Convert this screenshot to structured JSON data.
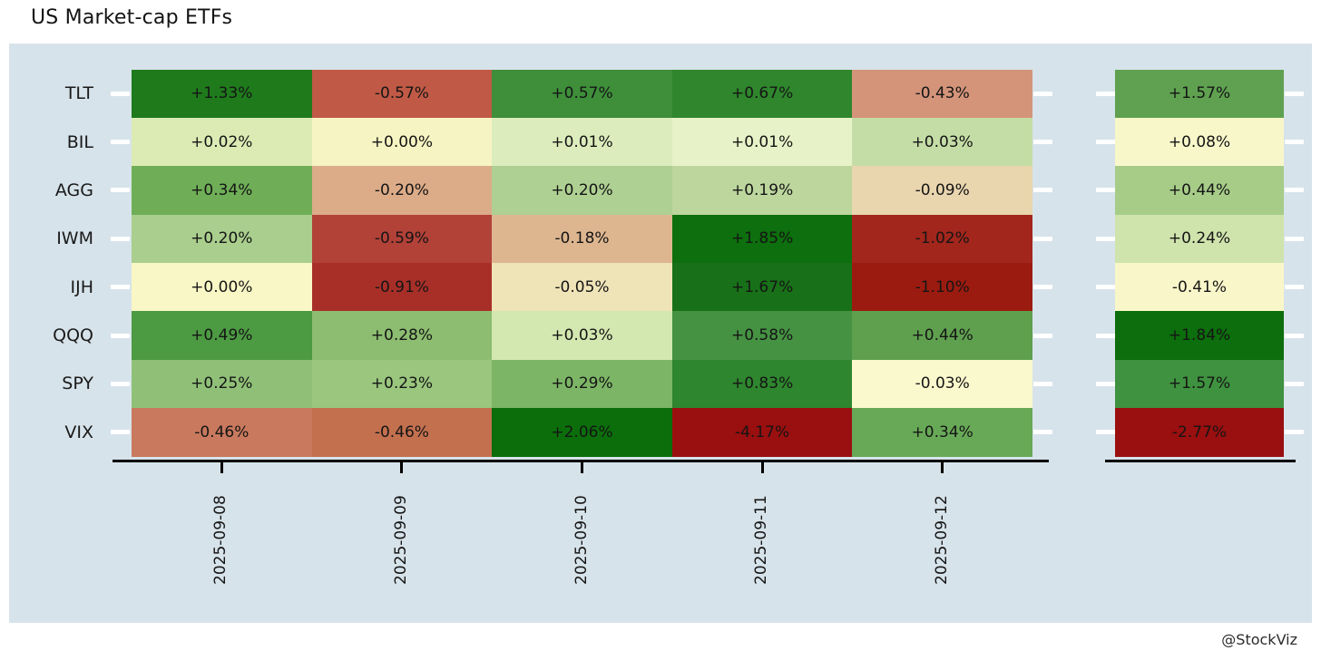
{
  "title": "US Market-cap ETFs",
  "watermark": "@StockViz",
  "colors": {
    "panel_bg": "#d7e3ea",
    "axis_line": "#000000",
    "row_tick": "#ffffff",
    "cell_text": "#151515"
  },
  "chart_data": {
    "type": "heatmap",
    "title": "US Market-cap ETFs",
    "columns": [
      "2025-09-08",
      "2025-09-09",
      "2025-09-10",
      "2025-09-11",
      "2025-09-12"
    ],
    "rows": [
      "TLT",
      "BIL",
      "AGG",
      "IWM",
      "IJH",
      "QQQ",
      "SPY",
      "VIX"
    ],
    "values": [
      [
        1.33,
        -0.57,
        0.57,
        0.67,
        -0.43
      ],
      [
        0.02,
        0.0,
        0.01,
        0.01,
        0.03
      ],
      [
        0.34,
        -0.2,
        0.2,
        0.19,
        -0.09
      ],
      [
        0.2,
        -0.59,
        -0.18,
        1.85,
        -1.02
      ],
      [
        0.0,
        -0.91,
        -0.05,
        1.67,
        -1.1
      ],
      [
        0.49,
        0.28,
        0.03,
        0.58,
        0.44
      ],
      [
        0.25,
        0.23,
        0.29,
        0.83,
        -0.03
      ],
      [
        -0.46,
        -0.46,
        2.06,
        -4.17,
        0.34
      ]
    ],
    "cell_labels": [
      [
        "+1.33%",
        "-0.57%",
        "+0.57%",
        "+0.67%",
        "-0.43%"
      ],
      [
        "+0.02%",
        "+0.00%",
        "+0.01%",
        "+0.01%",
        "+0.03%"
      ],
      [
        "+0.34%",
        "-0.20%",
        "+0.20%",
        "+0.19%",
        "-0.09%"
      ],
      [
        "+0.20%",
        "-0.59%",
        "-0.18%",
        "+1.85%",
        "-1.02%"
      ],
      [
        "+0.00%",
        "-0.91%",
        "-0.05%",
        "+1.67%",
        "-1.10%"
      ],
      [
        "+0.49%",
        "+0.28%",
        "+0.03%",
        "+0.58%",
        "+0.44%"
      ],
      [
        "+0.25%",
        "+0.23%",
        "+0.29%",
        "+0.83%",
        "-0.03%"
      ],
      [
        "-0.46%",
        "-0.46%",
        "+2.06%",
        "-4.17%",
        "+0.34%"
      ]
    ],
    "cell_colors": [
      [
        "#1f7a1c",
        "#c05a46",
        "#3e8e3a",
        "#2f862c",
        "#d3947a"
      ],
      [
        "#dcebb4",
        "#f6f4c2",
        "#dcecbc",
        "#e8f2c8",
        "#c4dda6"
      ],
      [
        "#6fae57",
        "#dcab88",
        "#aed092",
        "#bcd69e",
        "#e9d5ae"
      ],
      [
        "#a9ce8d",
        "#b24138",
        "#ddb68f",
        "#0d6f0d",
        "#a2261c"
      ],
      [
        "#f9f7c6",
        "#a82f28",
        "#efe3b8",
        "#187118",
        "#9c1b10"
      ],
      [
        "#4c9a42",
        "#8cbd70",
        "#d3e7b0",
        "#459243",
        "#5fa04f"
      ],
      [
        "#90c078",
        "#9ac67e",
        "#7cb566",
        "#2e862e",
        "#faf8cd"
      ],
      [
        "#c8795e",
        "#c3704f",
        "#0b6e0b",
        "#9a0f0f",
        "#68a957"
      ]
    ],
    "summary": {
      "values": [
        1.57,
        0.08,
        0.44,
        0.24,
        -0.41,
        1.84,
        1.57,
        -2.77
      ],
      "labels": [
        "+1.57%",
        "+0.08%",
        "+0.44%",
        "+0.24%",
        "-0.41%",
        "+1.84%",
        "+1.57%",
        "-2.77%"
      ],
      "colors": [
        "#5fa150",
        "#f8f7ca",
        "#a6cc88",
        "#cfe3ac",
        "#f9f7ca",
        "#0c6e0c",
        "#3f923f",
        "#9a0f0f"
      ]
    }
  }
}
